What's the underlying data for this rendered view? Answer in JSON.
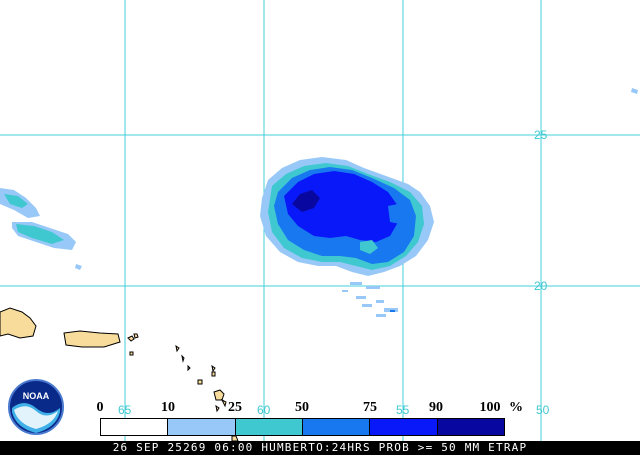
{
  "map": {
    "lat_labels": [
      "25",
      "20"
    ],
    "lon_labels": [
      "65",
      "60",
      "55",
      "50"
    ],
    "colors": {
      "grid": "#40d0d8",
      "land": "#f8dc9c",
      "coast": "#000000"
    }
  },
  "legend": {
    "ticks": [
      "0",
      "10",
      "25",
      "50",
      "75",
      "90",
      "100"
    ],
    "unit": "%",
    "colors": [
      "#ffffff",
      "#98c8f8",
      "#40c8d0",
      "#1878f0",
      "#0818f8",
      "#0808a0"
    ]
  },
  "caption": "26 SEP 25269 06:00 HUMBERTO:24HRS PROB >= 50 MM ETRAP",
  "logo": {
    "text": "NOAA",
    "icon": "noaa-logo-icon"
  }
}
